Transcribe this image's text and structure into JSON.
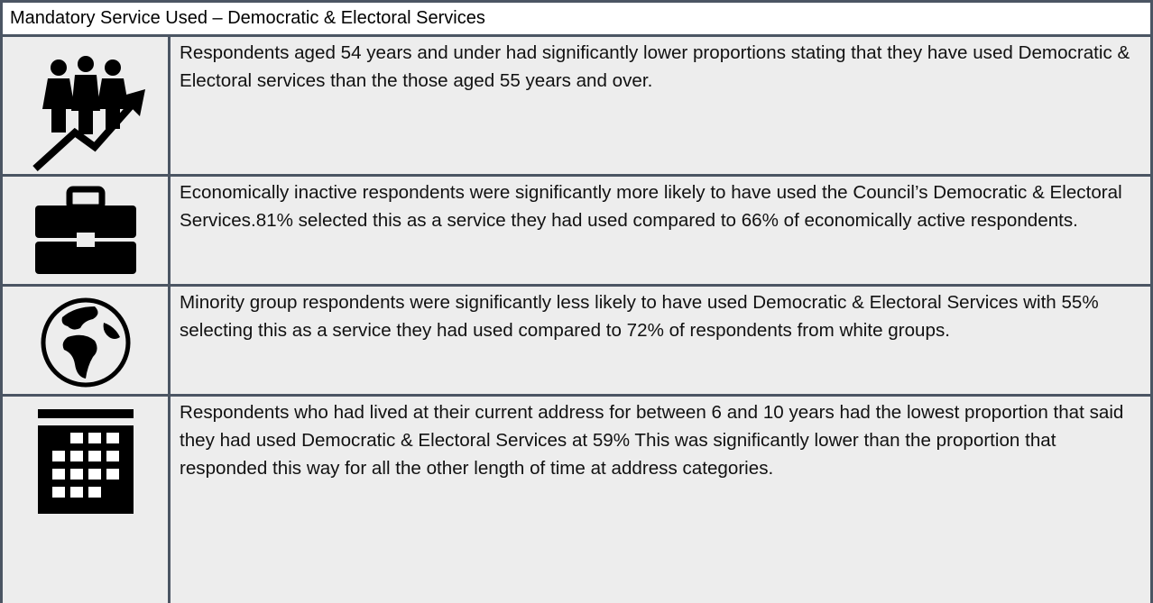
{
  "title": "Mandatory Service Used – Democratic & Electoral Services",
  "rows": [
    {
      "text": "Respondents aged 54 years and under had significantly lower proportions stating that they have used Democratic & Electoral services than the those aged 55 years and over."
    },
    {
      "text": "Economically inactive respondents were significantly more likely to have used the Council’s Democratic & Electoral Services.81% selected this as a service they had used compared to 66% of economically active respondents."
    },
    {
      "text": "Minority group respondents were significantly less likely to have used Democratic & Electoral Services with 55% selecting this as a service they had used compared to 72% of respondents from white groups."
    },
    {
      "text": "Respondents who had lived at their current address for between 6 and 10 years had the lowest proportion that said they had used Democratic & Electoral Services at 59% This was significantly lower than the proportion that responded this way for all the other length of time at address categories."
    }
  ]
}
